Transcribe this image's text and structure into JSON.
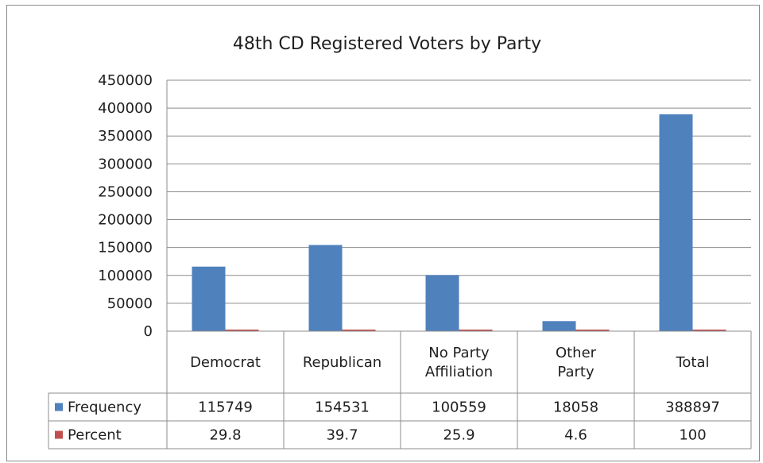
{
  "chart_data": {
    "type": "bar",
    "title": "48th CD Registered Voters by Party",
    "categories": [
      [
        "Democrat"
      ],
      [
        "Republican"
      ],
      [
        "No Party",
        "Affiliation"
      ],
      [
        "Other",
        "Party"
      ],
      [
        "Total"
      ]
    ],
    "series": [
      {
        "name": "Frequency",
        "color": "#4f81bd",
        "values": [
          115749,
          154531,
          100559,
          18058,
          388897
        ],
        "labels": [
          "115749",
          "154531",
          "100559",
          "18058",
          "388897"
        ]
      },
      {
        "name": "Percent",
        "color": "#c0504d",
        "values": [
          29.8,
          39.7,
          25.9,
          4.6,
          100
        ],
        "labels": [
          "29.8",
          "39.7",
          "25.9",
          "4.6",
          "100"
        ]
      }
    ],
    "ylim": [
      0,
      450000
    ],
    "yticks": [
      "0",
      "50000",
      "100000",
      "150000",
      "200000",
      "250000",
      "300000",
      "350000",
      "400000",
      "450000"
    ],
    "grid": true,
    "legend": "data-table",
    "xlabel": "",
    "ylabel": ""
  }
}
